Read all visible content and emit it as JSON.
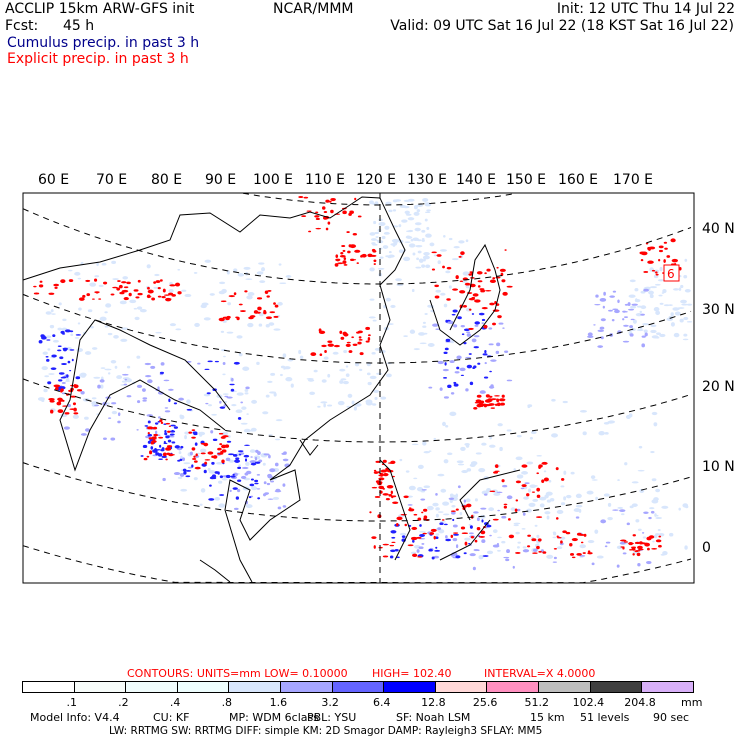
{
  "header": {
    "title": "ACCLIP 15km ARW-GFS init",
    "center": "NCAR/MMM",
    "init": "Init: 12 UTC Thu 14 Jul 22",
    "fcst_label": "Fcst:",
    "fcst_value": "45 h",
    "valid": "Valid: 09 UTC Sat 16 Jul 22 (18 KST Sat 16 Jul 22)",
    "legend_cumulus": "Cumulus precip. in past 3 h",
    "legend_explicit": "Explicit precip. in past 3 h"
  },
  "map": {
    "lon_labels": [
      "60 E",
      "70 E",
      "80 E",
      "90 E",
      "100 E",
      "110 E",
      "120 E",
      "130 E",
      "140 E",
      "150 E",
      "160 E",
      "170 E"
    ],
    "lat_labels": [
      "40 N",
      "30 N",
      "20 N",
      "10 N",
      "0"
    ],
    "box_label": "6"
  },
  "contours": {
    "units": "CONTOURS:  UNITS=mm  LOW= 0.10000",
    "high": "HIGH=  102.40",
    "interval": "INTERVAL=X  4.0000"
  },
  "colorbar": {
    "colors": [
      "#ffffff",
      "#f7fcfa",
      "#f0fcfc",
      "#eefefe",
      "#d8e6fc",
      "#a6a6ff",
      "#6464ff",
      "#0000ff",
      "#ffd8d8",
      "#ff90c0",
      "#bebebe",
      "#404040",
      "#d8b0f8"
    ],
    "labels": [
      ".1",
      ".2",
      ".4",
      ".8",
      "1.6",
      "3.2",
      "6.4",
      "12.8",
      "25.6",
      "51.2",
      "102.4",
      "204.8"
    ],
    "unit": "mm"
  },
  "model_info": {
    "line1": [
      "Model Info: V4.4",
      "CU: KF",
      "MP: WDM 6class",
      "PBL: YSU",
      "SF: Noah LSM",
      "15 km",
      "51 levels",
      "90 sec"
    ],
    "line2": "LW: RRTMG    SW: RRTMG   DIFF: simple KM: 2D Smagor DAMP: Rayleigh3   SFLAY: MM5"
  }
}
